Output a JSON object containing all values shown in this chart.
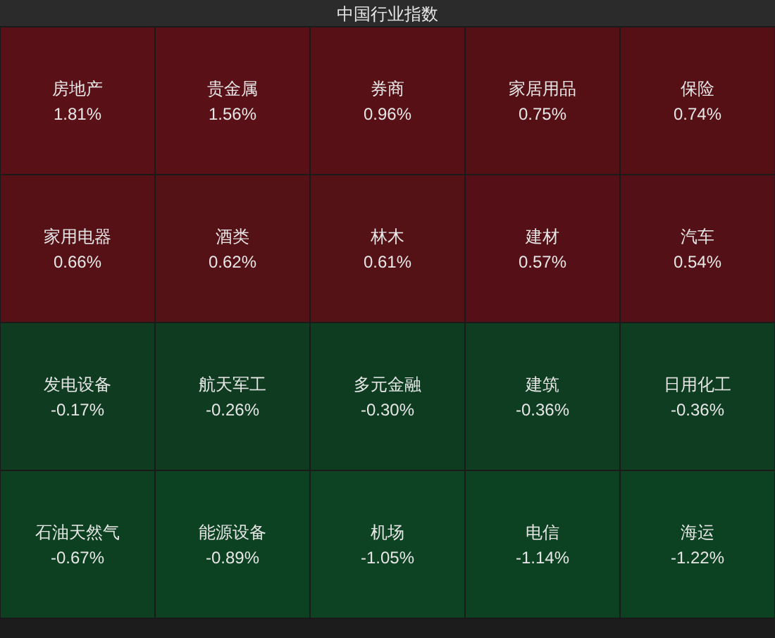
{
  "chart_data": {
    "type": "other",
    "title": "中国行业指数",
    "categories": [
      "房地产",
      "贵金属",
      "券商",
      "家居用品",
      "保险",
      "家用电器",
      "酒类",
      "林木",
      "建材",
      "汽车",
      "发电设备",
      "航天军工",
      "多元金融",
      "建筑",
      "日用化工",
      "石油天然气",
      "能源设备",
      "机场",
      "电信",
      "海运"
    ],
    "values": [
      1.81,
      1.56,
      0.96,
      0.75,
      0.74,
      0.66,
      0.62,
      0.61,
      0.57,
      0.54,
      -0.17,
      -0.26,
      -0.3,
      -0.36,
      -0.36,
      -0.67,
      -0.89,
      -1.05,
      -1.14,
      -1.22
    ],
    "value_labels": [
      "1.81%",
      "1.56%",
      "0.96%",
      "0.75%",
      "0.74%",
      "0.66%",
      "0.62%",
      "0.61%",
      "0.57%",
      "0.54%",
      "-0.17%",
      "-0.26%",
      "-0.30%",
      "-0.36%",
      "-0.36%",
      "-0.67%",
      "-0.89%",
      "-1.05%",
      "-1.14%",
      "-1.22%"
    ],
    "colors": [
      "#5a1016",
      "#5a1016",
      "#5a1016",
      "#5a1016",
      "#5a1016",
      "#5a1016",
      "#5a1016",
      "#5a1016",
      "#5a1016",
      "#5a1016",
      "#0c4322",
      "#0c4322",
      "#0c4322",
      "#0c4322",
      "#0c4322",
      "#0c4322",
      "#0c4322",
      "#0c4322",
      "#0c4322",
      "#0c4322"
    ]
  }
}
